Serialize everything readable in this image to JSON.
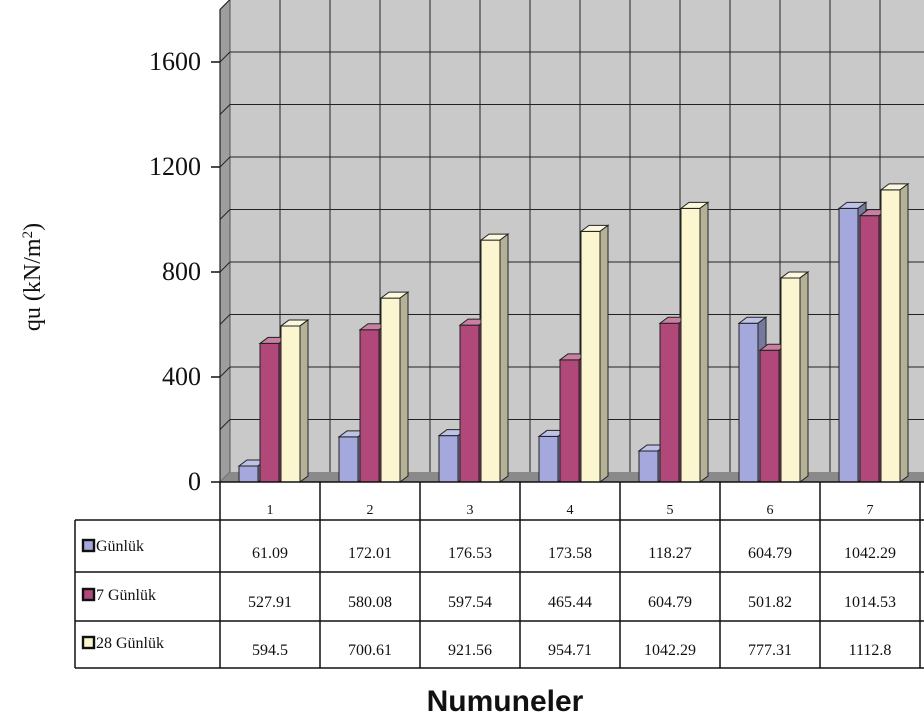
{
  "chart_data": {
    "type": "bar",
    "title": "",
    "xlabel": "Numuneler",
    "ylabel": "qu (kN/m²)",
    "ylabel_main": "qu (kN/m",
    "ylabel_sup": "2",
    "ylabel_close": ")",
    "ylim": [
      0,
      1800
    ],
    "yticks": [
      0,
      400,
      800,
      1200,
      1600
    ],
    "grid": true,
    "categories": [
      "1",
      "2",
      "3",
      "4",
      "5",
      "6",
      "7"
    ],
    "series": [
      {
        "name": "Günlük",
        "color": "#a4a8dc",
        "values": [
          61.09,
          172.01,
          176.53,
          173.58,
          118.27,
          604.79,
          1042.29
        ]
      },
      {
        "name": "7 Günlük",
        "color": "#b0487a",
        "values": [
          527.91,
          580.08,
          597.54,
          465.44,
          604.79,
          501.82,
          1014.53
        ]
      },
      {
        "name": "28 Günlük",
        "color": "#fbf6d0",
        "values": [
          594.5,
          700.61,
          921.56,
          954.71,
          1042.29,
          777.31,
          1112.8
        ]
      }
    ],
    "table": {
      "rows": [
        [
          "61.09",
          "172.01",
          "176.53",
          "173.58",
          "118.27",
          "604.79",
          "1042.29"
        ],
        [
          "527.91",
          "580.08",
          "597.54",
          "465.44",
          "604.79",
          "501.82",
          "1014.53"
        ],
        [
          "594.5",
          "700.61",
          "921.56",
          "954.71",
          "1042.29",
          "777.31",
          "1112.8"
        ]
      ]
    }
  }
}
